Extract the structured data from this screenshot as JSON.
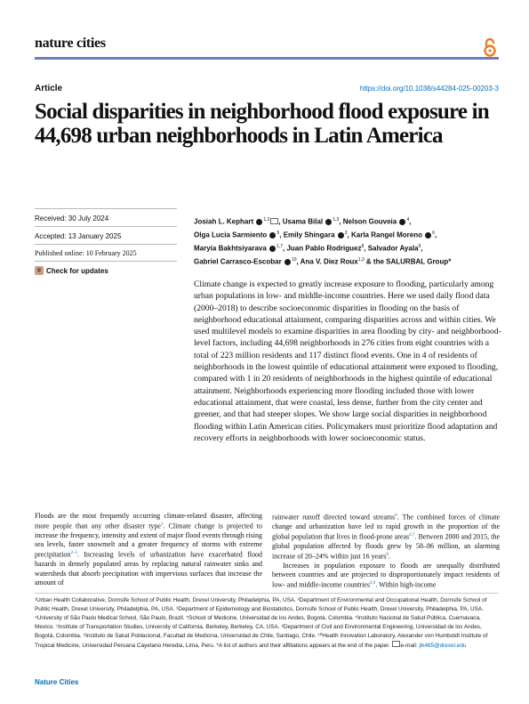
{
  "header": {
    "journal_name": "nature cities",
    "open_access_icon": "open-access-icon",
    "accent_color": "#6b7dbd",
    "oa_color": "#f07b22"
  },
  "article": {
    "type": "Article",
    "doi": "https://doi.org/10.1038/s44284-025-00203-3",
    "title": "Social disparities in neighborhood flood exposure in 44,698 urban neighborhoods in Latin America"
  },
  "dates": {
    "received": "Received: 30 July 2024",
    "accepted": "Accepted: 13 January 2025",
    "published": "Published online: 10 February 2025",
    "check_updates": "Check for updates"
  },
  "authors": {
    "line1": "Josiah L. Kephart",
    "line1_sup": "1,2",
    "a2": "Usama Bilal",
    "a2_sup": "1,3",
    "a3": "Nelson Gouveia",
    "a3_sup": "4",
    "a4": "Olga Lucia Sarmiento",
    "a4_sup": "5",
    "a5": "Emily Shingara",
    "a5_sup": "3",
    "a6": "Karla Rangel Moreno",
    "a6_sup": "6",
    "a7": "Maryia Bakhtsiyarava",
    "a7_sup": "1,7",
    "a8": "Juan Pablo Rodriguez",
    "a8_sup": "8",
    "a9": "Salvador Ayala",
    "a9_sup": "9",
    "a10": "Gabriel Carrasco-Escobar",
    "a10_sup": "10",
    "a11": "Ana V. Diez Roux",
    "a11_sup": "1,3",
    "a12": "& the SALURBAL Group*"
  },
  "abstract": "Climate change is expected to greatly increase exposure to flooding, particularly among urban populations in low- and middle-income countries. Here we used daily flood data (2000–2018) to describe socioeconomic disparities in flooding on the basis of neighborhood educational attainment, comparing disparities across and within cities. We used multilevel models to examine disparities in area flooding by city- and neighborhood-level factors, including 44,698 neighborhoods in 276 cities from eight countries with a total of 223 million residents and 117 distinct flood events. One in 4 of residents of neighborhoods in the lowest quintile of educational attainment were exposed to flooding, compared with 1 in 20 residents of neighborhoods in the highest quintile of educational attainment. Neighborhoods experiencing more flooding included those with lower educational attainment, that were coastal, less dense, further from the city center and greener, and that had steeper slopes. We show large social disparities in neighborhood flooding within Latin American cities. Policymakers must prioritize flood adaptation and recovery efforts in neighborhoods with lower socioeconomic status.",
  "body": {
    "col1": "Floods are the most frequently occurring climate-related disaster, affecting more people than any other disaster type",
    "col1_ref1": "1",
    "col1_b": ". Climate change is projected to increase the frequency, intensity and extent of major flood events through rising sea levels, faster snowmelt and a greater frequency of storms with extreme precipitation",
    "col1_ref2": "2–5",
    "col1_c": ". Increasing levels of urbanization have exacerbated flood hazards in densely populated areas by replacing natural rainwater sinks and watersheds that absorb precipitation with impervious surfaces that increase the amount of",
    "col2_a": "rainwater runoff directed toward streams",
    "col2_ref1": "6",
    "col2_b": ". The combined forces of climate change and urbanization have led to rapid growth in the proportion of the global population that lives in flood-prone areas",
    "col2_ref2": "4,7",
    "col2_c": ". Between 2000 and 2015, the global population affected by floods grew by 58–86 million, an alarming increase of 20–24% within just 16 years",
    "col2_ref3": "8",
    "col2_d": ".",
    "col2_p2": "Increases in population exposure to floods are unequally distributed between countries and are projected to disproportionately impact residents of low- and middle-income countries",
    "col2_ref4": "4,9",
    "col2_p2b": ". Within high-income"
  },
  "affiliations": {
    "text": "¹Urban Health Collaborative, Dornsife School of Public Health, Drexel University, Philadelphia, PA, USA. ²Department of Environmental and Occupational Health, Dornsife School of Public Health, Drexel University, Philadelphia, PA, USA. ³Department of Epidemiology and Biostatistics, Dornsife School of Public Health, Drexel University, Philadelphia, PA, USA. ⁴University of São Paulo Medical School, São Paulo, Brazil. ⁵School of Medicine, Universidad de los Andes, Bogotá, Colombia. ⁶Instituto Nacional de Salud Pública, Cuernavaca, Mexico. ⁷Institute of Transportation Studies, University of California, Berkeley, Berkeley, CA, USA. ⁸Department of Civil and Environmental Engineering, Universidad de los Andes, Bogotá, Colombia. ⁹Instituto de Salud Poblacional, Facultad de Medicina, Universidad de Chile, Santiago, Chile. ¹⁰Health Innovation Laboratory, Alexander von Humboldt Institute of Tropical Medicine, Universidad Peruana Cayetano Heredia, Lima, Peru. *A list of authors and their affiliations appears at the end of the paper.",
    "email_label": "e-mail:",
    "email": "jlk465@drexel.edu"
  },
  "footer": {
    "journal": "Nature Cities"
  }
}
